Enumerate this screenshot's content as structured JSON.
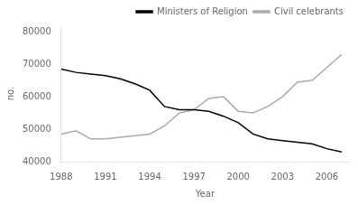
{
  "chart_data": {
    "type": "line",
    "x": [
      1988,
      1989,
      1990,
      1991,
      1992,
      1993,
      1994,
      1995,
      1996,
      1997,
      1998,
      1999,
      2000,
      2001,
      2002,
      2003,
      2004,
      2005,
      2006,
      2007
    ],
    "series": [
      {
        "name": "Ministers of Religion",
        "color": "#000000",
        "values": [
          68500,
          67500,
          67000,
          66500,
          65500,
          64000,
          62000,
          57000,
          56000,
          56000,
          55500,
          54000,
          52000,
          48500,
          47000,
          46500,
          46000,
          45500,
          44000,
          43000
        ]
      },
      {
        "name": "Civil celebrants",
        "color": "#aaaaaa",
        "values": [
          48500,
          49500,
          47000,
          47000,
          47500,
          48000,
          48500,
          51000,
          55000,
          56000,
          59500,
          60000,
          55500,
          55000,
          57000,
          60000,
          64500,
          65000,
          69000,
          73000
        ]
      }
    ],
    "xlabel": "Year",
    "ylabel": "no.",
    "xlim": [
      1988,
      2007.5
    ],
    "xticks": [
      1988,
      1991,
      1994,
      1997,
      2000,
      2003,
      2006
    ],
    "ylim": [
      40000,
      82000
    ],
    "yticks": [
      40000,
      50000,
      60000,
      70000,
      80000
    ],
    "grid": false,
    "legend": "upper right"
  }
}
